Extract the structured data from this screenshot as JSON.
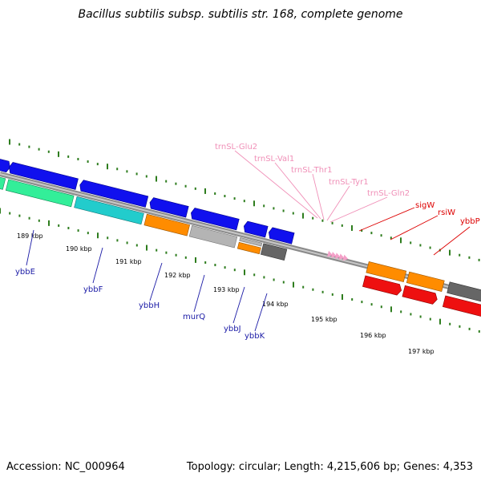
{
  "title": "Bacillus subtilis subsp. subtilis str. 168, complete genome",
  "footer": {
    "accession": "Accession: NC_000964",
    "summary": "Topology: circular; Length: 4,215,606 bp; Genes: 4,353"
  },
  "colors": {
    "backbone": "#8a8a8a",
    "tick": "#2e7d1e",
    "gene_label_blue": "#1a1aa6",
    "gene_label_red": "#dd0000",
    "gene_label_pink": "#f090b8",
    "blue_arrow": "#1010ee",
    "red_arrow": "#ee1010",
    "orange_arrow": "#ff8c00",
    "cyan_arrow": "#22cccc",
    "green_arrow": "#33ee99",
    "gray_arrow": "#b4b4b4",
    "darkgray_arrow": "#666666",
    "pink_arrow": "#f4a0c8"
  },
  "kbp_labels": [
    "189 kbp",
    "190 kbp",
    "191 kbp",
    "192 kbp",
    "193 kbp",
    "194 kbp",
    "195 kbp",
    "196 kbp",
    "197 kbp"
  ],
  "genes": [
    {
      "label": "ybbE",
      "color": "blue"
    },
    {
      "label": "ybbF",
      "color": "blue"
    },
    {
      "label": "ybbH",
      "color": "blue"
    },
    {
      "label": "murQ",
      "color": "blue"
    },
    {
      "label": "ybbJ",
      "color": "blue"
    },
    {
      "label": "ybbK",
      "color": "blue"
    },
    {
      "label": "sigW",
      "color": "red"
    },
    {
      "label": "rsiW",
      "color": "red"
    },
    {
      "label": "ybbP",
      "color": "red"
    },
    {
      "label": "trnSL-Glu2",
      "color": "pink"
    },
    {
      "label": "trnSL-Val1",
      "color": "pink"
    },
    {
      "label": "trnSL-Thr1",
      "color": "pink"
    },
    {
      "label": "trnSL-Tyr1",
      "color": "pink"
    },
    {
      "label": "trnSL-Gln2",
      "color": "pink"
    }
  ]
}
